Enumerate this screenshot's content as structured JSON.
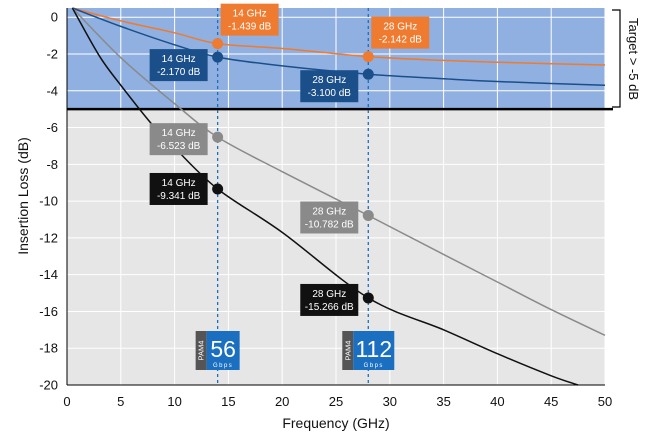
{
  "chart_data": {
    "type": "line",
    "xlabel": "Frequency (GHz)",
    "ylabel": "Insertion Loss (dB)",
    "xlim": [
      0,
      50
    ],
    "ylim": [
      -20,
      0.5
    ],
    "x_ticks": [
      "0",
      "5",
      "10",
      "15",
      "20",
      "25",
      "30",
      "35",
      "40",
      "45",
      "50"
    ],
    "y_ticks": [
      "0",
      "-2",
      "-4",
      "-6",
      "-8",
      "-10",
      "-12",
      "-14",
      "-16",
      "-18",
      "-20"
    ],
    "grid": true,
    "target": {
      "label": "Target > -5 dB",
      "threshold": -5,
      "color": "#8fb0e0"
    },
    "background_color": "#e6e6e6",
    "markers_x": [
      14,
      28
    ],
    "series": [
      {
        "color": "#ef7b30",
        "x": [
          0.5,
          5,
          10,
          14,
          20,
          28,
          35,
          40,
          50
        ],
        "y": [
          0.5,
          -0.2,
          -0.85,
          -1.439,
          -1.7,
          -2.142,
          -2.35,
          -2.45,
          -2.6
        ]
      },
      {
        "color": "#1a4f8a",
        "x": [
          0.5,
          5,
          10,
          14,
          20,
          28,
          35,
          40,
          50
        ],
        "y": [
          0.5,
          -0.5,
          -1.5,
          -2.17,
          -2.65,
          -3.1,
          -3.35,
          -3.5,
          -3.7
        ]
      },
      {
        "color": "#8a8a8a",
        "x": [
          0.5,
          5,
          10,
          14,
          20,
          28,
          35,
          40,
          45,
          50
        ],
        "y": [
          0.5,
          -2.2,
          -4.7,
          -6.523,
          -8.4,
          -10.782,
          -12.9,
          -14.4,
          -15.9,
          -17.3
        ]
      },
      {
        "color": "#111111",
        "x": [
          0.5,
          3,
          5,
          8,
          10,
          14,
          20,
          28,
          35,
          40,
          45,
          47.5
        ],
        "y": [
          0.5,
          -2.1,
          -3.7,
          -5.9,
          -7.1,
          -9.341,
          -11.7,
          -15.266,
          -17.0,
          -18.3,
          -19.5,
          -20
        ]
      }
    ],
    "annotations": [
      {
        "freq": "14 GHz",
        "value": "-1.439 dB",
        "x": 14,
        "y": -1.439,
        "color": "#ef7b30",
        "text_color": "#ffffff"
      },
      {
        "freq": "28 GHz",
        "value": "-2.142 dB",
        "x": 28,
        "y": -2.142,
        "color": "#ef7b30",
        "text_color": "#ffffff"
      },
      {
        "freq": "14 GHz",
        "value": "-2.170 dB",
        "x": 14,
        "y": -2.17,
        "color": "#1a4f8a",
        "text_color": "#ffffff"
      },
      {
        "freq": "28 GHz",
        "value": "-3.100 dB",
        "x": 28,
        "y": -3.1,
        "color": "#1a4f8a",
        "text_color": "#ffffff"
      },
      {
        "freq": "14 GHz",
        "value": "-6.523 dB",
        "x": 14,
        "y": -6.523,
        "color": "#8a8a8a",
        "text_color": "#ffffff"
      },
      {
        "freq": "28 GHz",
        "value": "-10.782 dB",
        "x": 28,
        "y": -10.782,
        "color": "#8a8a8a",
        "text_color": "#ffffff"
      },
      {
        "freq": "14 GHz",
        "value": "-9.341 dB",
        "x": 14,
        "y": -9.341,
        "color": "#111111",
        "text_color": "#ffffff"
      },
      {
        "freq": "28 GHz",
        "value": "-15.266 dB",
        "x": 28,
        "y": -15.266,
        "color": "#111111",
        "text_color": "#ffffff"
      }
    ],
    "badges": [
      {
        "x": 14,
        "tag": "PAM4",
        "value": "56",
        "unit": "Gbps",
        "color": "#1a6fc0"
      },
      {
        "x": 28,
        "tag": "PAM4",
        "value": "112",
        "unit": "Gbps",
        "color": "#1a6fc0"
      }
    ]
  }
}
